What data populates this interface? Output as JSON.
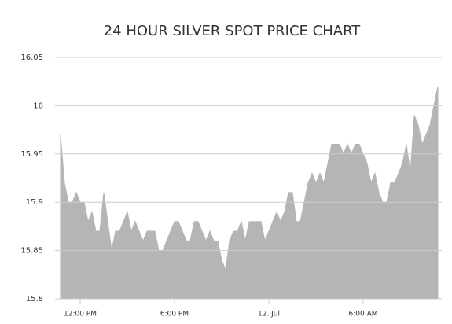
{
  "chart_data": {
    "type": "area",
    "title": "24 HOUR SILVER SPOT PRICE CHART",
    "categories": [
      null,
      null,
      null,
      null,
      null,
      "12:00 PM",
      null,
      null,
      null,
      null,
      null,
      null,
      null,
      null,
      null,
      null,
      null,
      null,
      null,
      null,
      null,
      null,
      null,
      null,
      null,
      null,
      null,
      null,
      null,
      "6:00 PM",
      null,
      null,
      null,
      null,
      null,
      null,
      null,
      null,
      null,
      null,
      null,
      null,
      null,
      null,
      null,
      null,
      null,
      null,
      null,
      null,
      null,
      null,
      null,
      "12. Jul",
      null,
      null,
      null,
      null,
      null,
      null,
      null,
      null,
      null,
      null,
      null,
      null,
      null,
      null,
      null,
      null,
      null,
      null,
      null,
      null,
      null,
      null,
      null,
      "6:00 AM",
      null,
      null,
      null,
      null,
      null,
      null,
      null,
      null,
      null,
      null,
      null,
      null,
      null,
      null,
      null,
      null,
      null,
      null,
      null
    ],
    "values": [
      15.97,
      15.92,
      15.9,
      15.9,
      15.91,
      15.9,
      15.9,
      15.88,
      15.89,
      15.87,
      15.87,
      15.91,
      15.88,
      15.85,
      15.87,
      15.87,
      15.88,
      15.89,
      15.87,
      15.88,
      15.87,
      15.86,
      15.87,
      15.87,
      15.87,
      15.85,
      15.85,
      15.86,
      15.87,
      15.88,
      15.88,
      15.87,
      15.86,
      15.86,
      15.88,
      15.88,
      15.87,
      15.86,
      15.87,
      15.86,
      15.86,
      15.84,
      15.83,
      15.86,
      15.87,
      15.87,
      15.88,
      15.86,
      15.88,
      15.88,
      15.88,
      15.88,
      15.86,
      15.87,
      15.88,
      15.89,
      15.88,
      15.89,
      15.91,
      15.91,
      15.88,
      15.88,
      15.9,
      15.92,
      15.93,
      15.92,
      15.93,
      15.92,
      15.94,
      15.96,
      15.96,
      15.96,
      15.95,
      15.96,
      15.95,
      15.96,
      15.96,
      15.95,
      15.94,
      15.92,
      15.93,
      15.91,
      15.9,
      15.9,
      15.92,
      15.92,
      15.93,
      15.94,
      15.96,
      15.93,
      15.99,
      15.98,
      15.96,
      15.97,
      15.98,
      16.0,
      16.02
    ],
    "color": "#b5b5b5",
    "ylim": [
      15.8,
      16.05
    ],
    "yticks": [
      15.8,
      15.85,
      15.9,
      15.95,
      16,
      16.05
    ],
    "grid": true
  }
}
